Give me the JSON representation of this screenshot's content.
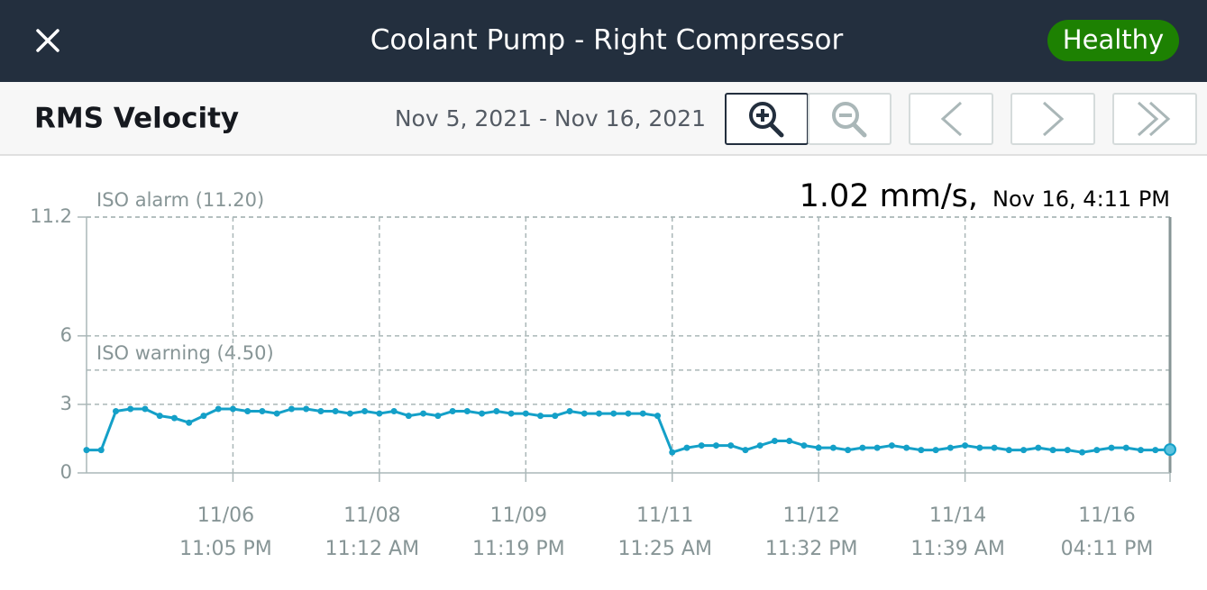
{
  "header": {
    "title": "Coolant Pump - Right Compressor",
    "status": "Healthy"
  },
  "toolbar": {
    "metric": "RMS Velocity",
    "date_range": "Nov 5, 2021 - Nov 16, 2021"
  },
  "chart_data": {
    "type": "line",
    "readout": {
      "value": "1.02 mm/s,",
      "time": "Nov 16, 4:11 PM"
    },
    "thresholds": [
      {
        "label": "ISO alarm (11.20)",
        "value": 11.2
      },
      {
        "label": "ISO warning (4.50)",
        "value": 4.5
      }
    ],
    "x": [
      0,
      1,
      2,
      3,
      4,
      5,
      6,
      7,
      8,
      9,
      10,
      11,
      12,
      13,
      14,
      15,
      16,
      17,
      18,
      19,
      20,
      21,
      22,
      23,
      24,
      25,
      26,
      27,
      28,
      29,
      30,
      31,
      32,
      33,
      34,
      35,
      36,
      37,
      38,
      39,
      40,
      41,
      42,
      43,
      44,
      45,
      46,
      47,
      48,
      49,
      50,
      51,
      52,
      53,
      54,
      55,
      56,
      57,
      58,
      59,
      60,
      61,
      62,
      63,
      64,
      65,
      66,
      67,
      68,
      69,
      70,
      71,
      72,
      73,
      74
    ],
    "series": [
      {
        "color": "#14a0c8",
        "values": [
          1.0,
          1.0,
          2.7,
          2.8,
          2.8,
          2.5,
          2.4,
          2.2,
          2.5,
          2.8,
          2.8,
          2.7,
          2.7,
          2.6,
          2.8,
          2.8,
          2.7,
          2.7,
          2.6,
          2.7,
          2.6,
          2.7,
          2.5,
          2.6,
          2.5,
          2.7,
          2.7,
          2.6,
          2.7,
          2.6,
          2.6,
          2.5,
          2.5,
          2.7,
          2.6,
          2.6,
          2.6,
          2.6,
          2.6,
          2.5,
          0.9,
          1.1,
          1.2,
          1.2,
          1.2,
          1.0,
          1.2,
          1.4,
          1.4,
          1.2,
          1.1,
          1.1,
          1.0,
          1.1,
          1.1,
          1.2,
          1.1,
          1.0,
          1.0,
          1.1,
          1.2,
          1.1,
          1.1,
          1.0,
          1.0,
          1.1,
          1.0,
          1.0,
          0.9,
          1.0,
          1.1,
          1.1,
          1.0,
          1.0,
          1.02
        ]
      }
    ],
    "xlim": [
      0,
      74
    ],
    "xticks": [
      {
        "value": 10,
        "label": "11/06",
        "sublabel": "11:05 PM"
      },
      {
        "value": 20,
        "label": "11/08",
        "sublabel": "11:12 AM"
      },
      {
        "value": 30,
        "label": "11/09",
        "sublabel": "11:19 PM"
      },
      {
        "value": 40,
        "label": "11/11",
        "sublabel": "11:25 AM"
      },
      {
        "value": 50,
        "label": "11/12",
        "sublabel": "11:32 PM"
      },
      {
        "value": 60,
        "label": "11/14",
        "sublabel": "11:39 AM"
      },
      {
        "value": 74,
        "label": "11/16",
        "sublabel": "04:11 PM"
      }
    ],
    "ylim": [
      0,
      11.2
    ],
    "yticks": [
      0,
      3,
      6,
      11.2
    ],
    "grid": true
  }
}
